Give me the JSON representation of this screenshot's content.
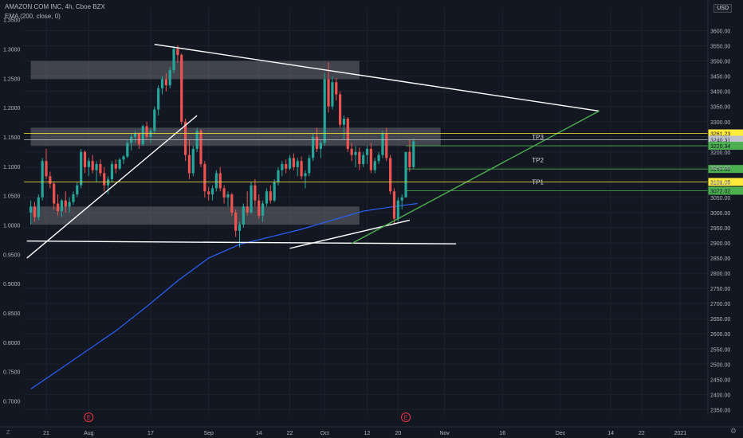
{
  "header": {
    "title": "AMAZON COM INC, 4h, Cboe BZX",
    "indicator": "EMA (200, close, 0)"
  },
  "currency_badge": "USD",
  "zoom_label": "Z",
  "settings_icon": "gear-icon",
  "colors": {
    "background": "#131722",
    "grid": "#1e222d",
    "up_candle": "#26a69a",
    "down_candle": "#ef5350",
    "ema": "#2962ff",
    "zone": "#7a7c83",
    "trendline": "#ffffff",
    "green_line": "#4caf50",
    "yellow_line": "#ffeb3b",
    "earnings": "#f23645"
  },
  "chart_data": {
    "type": "candlestick",
    "left_axis": {
      "ticks": [
        "1.3500",
        "1.3000",
        "1.2500",
        "1.2000",
        "1.1500",
        "1.1000",
        "1.0500",
        "1.0000",
        "0.9500",
        "0.9000",
        "0.8500",
        "0.8000",
        "0.7500",
        "0.7000"
      ],
      "range": [
        0.675,
        1.37
      ]
    },
    "right_axis": {
      "ticks": [
        "3600.00",
        "3550.00",
        "3500.00",
        "3450.00",
        "3400.00",
        "3350.00",
        "3300.00",
        "3250.00",
        "3200.00",
        "3150.00",
        "3100.00",
        "3050.00",
        "3000.00",
        "2950.00",
        "2900.00",
        "2850.00",
        "2800.00",
        "2750.00",
        "2700.00",
        "2650.00",
        "2600.00",
        "2550.00",
        "2500.00",
        "2450.00",
        "2400.00",
        "2350.00"
      ],
      "range": [
        2330,
        3675
      ]
    },
    "x_axis": {
      "labels": [
        {
          "text": "21",
          "day": 0
        },
        {
          "text": "Aug",
          "day": 11
        },
        {
          "text": "17",
          "day": 27
        },
        {
          "text": "Sep",
          "day": 42
        },
        {
          "text": "14",
          "day": 55
        },
        {
          "text": "22",
          "day": 63
        },
        {
          "text": "Oct",
          "day": 72
        },
        {
          "text": "12",
          "day": 83
        },
        {
          "text": "20",
          "day": 91
        },
        {
          "text": "Nov",
          "day": 103
        },
        {
          "text": "16",
          "day": 118
        },
        {
          "text": "Dec",
          "day": 133
        },
        {
          "text": "14",
          "day": 146
        },
        {
          "text": "22",
          "day": 154
        },
        {
          "text": "2021",
          "day": 164
        }
      ]
    },
    "ohlc_daily": [
      {
        "day": -4,
        "o": 3000,
        "h": 3040,
        "l": 2960,
        "c": 3020
      },
      {
        "day": -3,
        "o": 3020,
        "h": 3035,
        "l": 2970,
        "c": 2985
      },
      {
        "day": -2,
        "o": 2985,
        "h": 3060,
        "l": 2975,
        "c": 3050
      },
      {
        "day": -1,
        "o": 3050,
        "h": 3180,
        "l": 3040,
        "c": 3170
      },
      {
        "day": 0,
        "o": 3170,
        "h": 3210,
        "l": 3110,
        "c": 3120
      },
      {
        "day": 1,
        "o": 3120,
        "h": 3135,
        "l": 3080,
        "c": 3095
      },
      {
        "day": 2,
        "o": 3095,
        "h": 3100,
        "l": 3010,
        "c": 3030
      },
      {
        "day": 3,
        "o": 3030,
        "h": 3060,
        "l": 2990,
        "c": 3005
      },
      {
        "day": 4,
        "o": 3005,
        "h": 3045,
        "l": 2985,
        "c": 3040
      },
      {
        "day": 5,
        "o": 3040,
        "h": 3070,
        "l": 3000,
        "c": 3020
      },
      {
        "day": 6,
        "o": 3020,
        "h": 3050,
        "l": 3000,
        "c": 3035
      },
      {
        "day": 7,
        "o": 3035,
        "h": 3070,
        "l": 3025,
        "c": 3060
      },
      {
        "day": 8,
        "o": 3060,
        "h": 3100,
        "l": 3050,
        "c": 3090
      },
      {
        "day": 9,
        "o": 3090,
        "h": 3210,
        "l": 3080,
        "c": 3200
      },
      {
        "day": 10,
        "o": 3200,
        "h": 3205,
        "l": 3130,
        "c": 3150
      },
      {
        "day": 11,
        "o": 3150,
        "h": 3180,
        "l": 3120,
        "c": 3170
      },
      {
        "day": 12,
        "o": 3170,
        "h": 3190,
        "l": 3130,
        "c": 3140
      },
      {
        "day": 13,
        "o": 3140,
        "h": 3170,
        "l": 3100,
        "c": 3160
      },
      {
        "day": 14,
        "o": 3160,
        "h": 3175,
        "l": 3120,
        "c": 3130
      },
      {
        "day": 15,
        "o": 3130,
        "h": 3150,
        "l": 3070,
        "c": 3090
      },
      {
        "day": 16,
        "o": 3090,
        "h": 3120,
        "l": 3060,
        "c": 3110
      },
      {
        "day": 17,
        "o": 3110,
        "h": 3170,
        "l": 3100,
        "c": 3160
      },
      {
        "day": 18,
        "o": 3160,
        "h": 3175,
        "l": 3130,
        "c": 3145
      },
      {
        "day": 19,
        "o": 3145,
        "h": 3180,
        "l": 3140,
        "c": 3175
      },
      {
        "day": 20,
        "o": 3175,
        "h": 3190,
        "l": 3160,
        "c": 3185
      },
      {
        "day": 21,
        "o": 3185,
        "h": 3240,
        "l": 3180,
        "c": 3230
      },
      {
        "day": 22,
        "o": 3230,
        "h": 3260,
        "l": 3205,
        "c": 3250
      },
      {
        "day": 23,
        "o": 3250,
        "h": 3270,
        "l": 3230,
        "c": 3260
      },
      {
        "day": 24,
        "o": 3260,
        "h": 3265,
        "l": 3210,
        "c": 3225
      },
      {
        "day": 25,
        "o": 3225,
        "h": 3290,
        "l": 3220,
        "c": 3285
      },
      {
        "day": 26,
        "o": 3285,
        "h": 3300,
        "l": 3240,
        "c": 3250
      },
      {
        "day": 27,
        "o": 3250,
        "h": 3280,
        "l": 3230,
        "c": 3270
      },
      {
        "day": 28,
        "o": 3270,
        "h": 3350,
        "l": 3260,
        "c": 3340
      },
      {
        "day": 29,
        "o": 3340,
        "h": 3420,
        "l": 3320,
        "c": 3410
      },
      {
        "day": 30,
        "o": 3410,
        "h": 3450,
        "l": 3390,
        "c": 3440
      },
      {
        "day": 31,
        "o": 3440,
        "h": 3460,
        "l": 3400,
        "c": 3420
      },
      {
        "day": 32,
        "o": 3420,
        "h": 3480,
        "l": 3410,
        "c": 3470
      },
      {
        "day": 33,
        "o": 3470,
        "h": 3550,
        "l": 3460,
        "c": 3540
      },
      {
        "day": 34,
        "o": 3540,
        "h": 3552,
        "l": 3495,
        "c": 3520
      },
      {
        "day": 35,
        "o": 3520,
        "h": 3525,
        "l": 3290,
        "c": 3300
      },
      {
        "day": 36,
        "o": 3300,
        "h": 3310,
        "l": 3170,
        "c": 3190
      },
      {
        "day": 37,
        "o": 3190,
        "h": 3240,
        "l": 3110,
        "c": 3130
      },
      {
        "day": 38,
        "o": 3130,
        "h": 3220,
        "l": 3120,
        "c": 3210
      },
      {
        "day": 39,
        "o": 3210,
        "h": 3280,
        "l": 3200,
        "c": 3270
      },
      {
        "day": 40,
        "o": 3270,
        "h": 3275,
        "l": 3150,
        "c": 3160
      },
      {
        "day": 41,
        "o": 3160,
        "h": 3170,
        "l": 3050,
        "c": 3070
      },
      {
        "day": 42,
        "o": 3070,
        "h": 3085,
        "l": 3040,
        "c": 3060
      },
      {
        "day": 43,
        "o": 3060,
        "h": 3090,
        "l": 3040,
        "c": 3080
      },
      {
        "day": 44,
        "o": 3080,
        "h": 3140,
        "l": 3070,
        "c": 3130
      },
      {
        "day": 45,
        "o": 3130,
        "h": 3150,
        "l": 3070,
        "c": 3080
      },
      {
        "day": 46,
        "o": 3080,
        "h": 3090,
        "l": 3030,
        "c": 3050
      },
      {
        "day": 47,
        "o": 3050,
        "h": 3070,
        "l": 3020,
        "c": 3060
      },
      {
        "day": 48,
        "o": 3060,
        "h": 3065,
        "l": 2990,
        "c": 3000
      },
      {
        "day": 49,
        "o": 3000,
        "h": 3010,
        "l": 2920,
        "c": 2940
      },
      {
        "day": 50,
        "o": 2940,
        "h": 2970,
        "l": 2885,
        "c": 2960
      },
      {
        "day": 51,
        "o": 2960,
        "h": 3030,
        "l": 2950,
        "c": 3020
      },
      {
        "day": 52,
        "o": 3020,
        "h": 3070,
        "l": 2990,
        "c": 3000
      },
      {
        "day": 53,
        "o": 3000,
        "h": 3100,
        "l": 2995,
        "c": 3090
      },
      {
        "day": 54,
        "o": 3090,
        "h": 3110,
        "l": 3020,
        "c": 3040
      },
      {
        "day": 55,
        "o": 3040,
        "h": 3060,
        "l": 2980,
        "c": 2990
      },
      {
        "day": 56,
        "o": 2990,
        "h": 3040,
        "l": 2970,
        "c": 3030
      },
      {
        "day": 57,
        "o": 3030,
        "h": 3080,
        "l": 3020,
        "c": 3070
      },
      {
        "day": 58,
        "o": 3070,
        "h": 3090,
        "l": 3030,
        "c": 3040
      },
      {
        "day": 59,
        "o": 3040,
        "h": 3110,
        "l": 3035,
        "c": 3100
      },
      {
        "day": 60,
        "o": 3100,
        "h": 3150,
        "l": 3090,
        "c": 3140
      },
      {
        "day": 61,
        "o": 3140,
        "h": 3170,
        "l": 3120,
        "c": 3160
      },
      {
        "day": 62,
        "o": 3160,
        "h": 3175,
        "l": 3130,
        "c": 3145
      },
      {
        "day": 63,
        "o": 3145,
        "h": 3190,
        "l": 3140,
        "c": 3180
      },
      {
        "day": 64,
        "o": 3180,
        "h": 3195,
        "l": 3140,
        "c": 3150
      },
      {
        "day": 65,
        "o": 3150,
        "h": 3180,
        "l": 3120,
        "c": 3170
      },
      {
        "day": 66,
        "o": 3170,
        "h": 3185,
        "l": 3110,
        "c": 3120
      },
      {
        "day": 67,
        "o": 3120,
        "h": 3140,
        "l": 3080,
        "c": 3130
      },
      {
        "day": 68,
        "o": 3130,
        "h": 3190,
        "l": 3120,
        "c": 3180
      },
      {
        "day": 69,
        "o": 3180,
        "h": 3260,
        "l": 3170,
        "c": 3250
      },
      {
        "day": 70,
        "o": 3250,
        "h": 3280,
        "l": 3200,
        "c": 3210
      },
      {
        "day": 71,
        "o": 3210,
        "h": 3240,
        "l": 3180,
        "c": 3230
      },
      {
        "day": 72,
        "o": 3230,
        "h": 3460,
        "l": 3220,
        "c": 3440
      },
      {
        "day": 73,
        "o": 3440,
        "h": 3495,
        "l": 3330,
        "c": 3350
      },
      {
        "day": 74,
        "o": 3350,
        "h": 3450,
        "l": 3340,
        "c": 3430
      },
      {
        "day": 75,
        "o": 3430,
        "h": 3445,
        "l": 3370,
        "c": 3390
      },
      {
        "day": 76,
        "o": 3390,
        "h": 3400,
        "l": 3280,
        "c": 3290
      },
      {
        "day": 77,
        "o": 3290,
        "h": 3320,
        "l": 3240,
        "c": 3310
      },
      {
        "day": 78,
        "o": 3310,
        "h": 3315,
        "l": 3200,
        "c": 3210
      },
      {
        "day": 79,
        "o": 3210,
        "h": 3230,
        "l": 3170,
        "c": 3190
      },
      {
        "day": 80,
        "o": 3190,
        "h": 3220,
        "l": 3150,
        "c": 3200
      },
      {
        "day": 81,
        "o": 3200,
        "h": 3215,
        "l": 3140,
        "c": 3160
      },
      {
        "day": 82,
        "o": 3160,
        "h": 3200,
        "l": 3150,
        "c": 3190
      },
      {
        "day": 83,
        "o": 3190,
        "h": 3220,
        "l": 3160,
        "c": 3210
      },
      {
        "day": 84,
        "o": 3210,
        "h": 3230,
        "l": 3130,
        "c": 3140
      },
      {
        "day": 85,
        "o": 3140,
        "h": 3180,
        "l": 3130,
        "c": 3170
      },
      {
        "day": 86,
        "o": 3170,
        "h": 3200,
        "l": 3160,
        "c": 3190
      },
      {
        "day": 87,
        "o": 3190,
        "h": 3270,
        "l": 3180,
        "c": 3260
      },
      {
        "day": 88,
        "o": 3260,
        "h": 3280,
        "l": 3170,
        "c": 3180
      },
      {
        "day": 89,
        "o": 3180,
        "h": 3190,
        "l": 3060,
        "c": 3070
      },
      {
        "day": 90,
        "o": 3070,
        "h": 3080,
        "l": 2960,
        "c": 2980
      },
      {
        "day": 91,
        "o": 2980,
        "h": 3050,
        "l": 2970,
        "c": 3040
      },
      {
        "day": 92,
        "o": 3040,
        "h": 3060,
        "l": 3010,
        "c": 3050
      },
      {
        "day": 93,
        "o": 3050,
        "h": 3110,
        "l": 3190,
        "c": 3200
      },
      {
        "day": 94,
        "o": 3200,
        "h": 3240,
        "l": 3135,
        "c": 3150
      },
      {
        "day": 95,
        "o": 3150,
        "h": 3245,
        "l": 3145,
        "c": 3235
      }
    ],
    "ema_200": [
      {
        "day": -4,
        "v": 2418
      },
      {
        "day": 2,
        "v": 2470
      },
      {
        "day": 10,
        "v": 2540
      },
      {
        "day": 18,
        "v": 2610
      },
      {
        "day": 26,
        "v": 2690
      },
      {
        "day": 34,
        "v": 2775
      },
      {
        "day": 42,
        "v": 2850
      },
      {
        "day": 50,
        "v": 2895
      },
      {
        "day": 58,
        "v": 2920
      },
      {
        "day": 66,
        "v": 2945
      },
      {
        "day": 74,
        "v": 2975
      },
      {
        "day": 82,
        "v": 3005
      },
      {
        "day": 90,
        "v": 3020
      },
      {
        "day": 96,
        "v": 3030
      }
    ],
    "zones": [
      {
        "from": -4,
        "to": 81,
        "low": 3440,
        "high": 3500
      },
      {
        "from": -4,
        "to": 102,
        "low": 3220,
        "high": 3280
      },
      {
        "from": -4,
        "to": 81,
        "low": 2960,
        "high": 3020
      }
    ],
    "trendlines": [
      {
        "x1": -5,
        "y1": 2850,
        "x2": 39,
        "y2": 3320
      },
      {
        "x1": 28,
        "y1": 3555,
        "x2": 143,
        "y2": 3335
      },
      {
        "x1": -5,
        "y1": 2906,
        "x2": 106,
        "y2": 2897
      },
      {
        "x1": 63,
        "y1": 2882,
        "x2": 94,
        "y2": 2975
      },
      {
        "x1": 79,
        "y1": 2898,
        "x2": 143,
        "y2": 3335
      }
    ],
    "targets": [
      {
        "label": "TP3",
        "from": 93,
        "to": 190,
        "level": 3220.34,
        "pad": "3220.34",
        "color": "#4caf50",
        "label_x": 105
      },
      {
        "label": "TP2",
        "from": 93,
        "to": 190,
        "level": 3143.88,
        "pad": "3143.88",
        "color": "#4caf50",
        "label_x": 105
      },
      {
        "label": "TP1",
        "from": 93,
        "to": 190,
        "level": 3072.02,
        "pad": "3072.02",
        "color": "#4caf50",
        "label_x": 105
      }
    ],
    "horizontal_levels": [
      {
        "level": 3261.23,
        "pad": "3261.23",
        "color": "#ffeb3b"
      },
      {
        "level": 3240.31,
        "pad": "3240.31",
        "color": "#c0c3cc"
      },
      {
        "level": 3101.05,
        "pad": "3101.05",
        "color": "#ffeb3b"
      }
    ],
    "earnings_markers": [
      {
        "day": 11,
        "label": "E"
      },
      {
        "day": 93,
        "label": "E"
      }
    ]
  }
}
